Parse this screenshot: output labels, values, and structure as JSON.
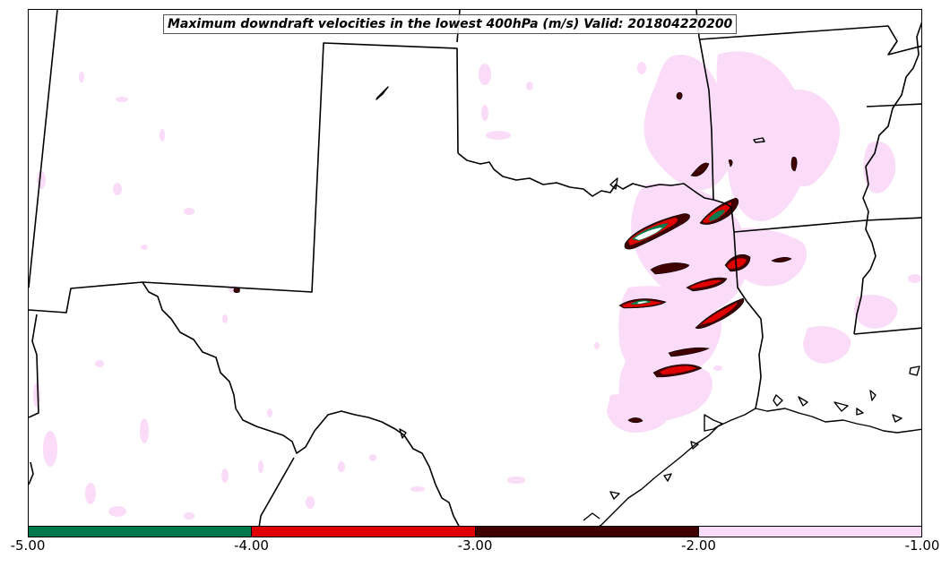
{
  "title": "Maximum downdraft velocities in the lowest 400hPa (m/s) Valid: 201804220200",
  "colorbar": {
    "ticks": [
      "-5.00",
      "-4.00",
      "-3.00",
      "-2.00",
      "-1.00"
    ],
    "bins": [
      {
        "from": -5.0,
        "to": -4.0,
        "color": "#007a4d"
      },
      {
        "from": -4.0,
        "to": -3.0,
        "color": "#e00000"
      },
      {
        "from": -3.0,
        "to": -2.0,
        "color": "#400000"
      },
      {
        "from": -2.0,
        "to": -1.0,
        "color": "#fadcf8"
      }
    ]
  },
  "colors": {
    "weak": "#fadcf8",
    "moderate": "#400000",
    "strong": "#e00000",
    "extreme": "#007a4d",
    "boundaries": "#000000"
  }
}
